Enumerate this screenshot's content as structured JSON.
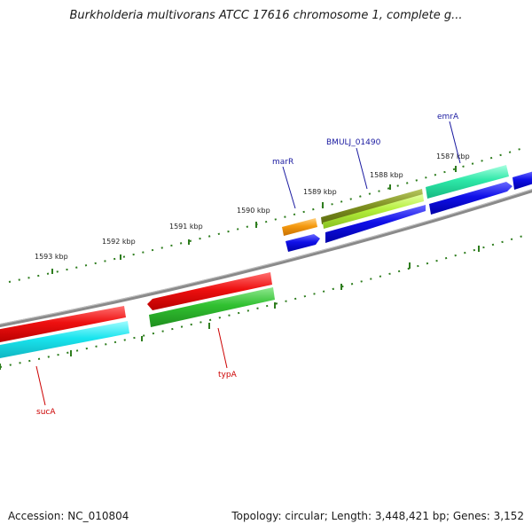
{
  "title": "Burkholderia multivorans ATCC 17616 chromosome 1, complete g...",
  "accession": "Accession: NC_010804",
  "topology": "Topology: circular; Length: 3,448,421 bp; Genes: 3,152",
  "ticks": [
    "1593 kbp",
    "1592 kbp",
    "1591 kbp",
    "1590 kbp",
    "1589 kbp",
    "1588 kbp",
    "1587 kbp"
  ],
  "genes": [
    {
      "name": "marR",
      "color": "#1a1aa0"
    },
    {
      "name": "BMULJ_01490",
      "color": "#1a1aa0"
    },
    {
      "name": "emrA",
      "color": "#1a1aa0"
    },
    {
      "name": "typA",
      "color": "#cc0000"
    },
    {
      "name": "sucA",
      "color": "#cc0000"
    }
  ],
  "colors": {
    "backbone": "#8a8a8a",
    "tick": "#2e7d1e",
    "red": "#e61010",
    "cyan": "#19e6ee",
    "green": "#2fbf2f",
    "blue": "#1010e0",
    "orange": "#f59a10",
    "olive": "#7d8f1f",
    "lime": "#b7f040",
    "teal": "#2ee8a8"
  }
}
